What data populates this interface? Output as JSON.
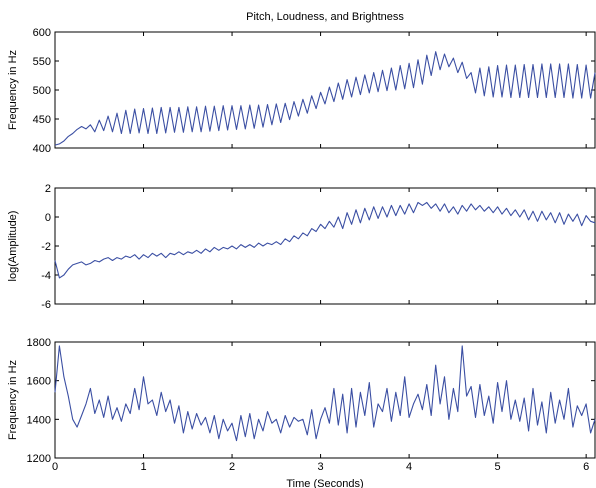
{
  "figure": {
    "title": "Pitch, Loudness, and Brightness",
    "xlabel": "Time (Seconds)"
  },
  "chart_data": [
    {
      "type": "line",
      "title": "Pitch, Loudness, and Brightness",
      "xlabel": "",
      "ylabel": "Frequency in Hz",
      "xlim": [
        0,
        6.1
      ],
      "ylim": [
        400,
        600
      ],
      "xticks": [],
      "yticks": [
        400,
        450,
        500,
        550,
        600
      ],
      "grid": false,
      "series": [
        {
          "color": "#3b4fa3",
          "x": [
            0,
            0.05,
            0.1,
            0.15,
            0.2,
            0.25,
            0.3,
            0.35,
            0.4,
            0.45,
            0.5,
            0.55,
            0.6,
            0.65,
            0.7,
            0.75,
            0.8,
            0.85,
            0.9,
            0.95,
            1.0,
            1.05,
            1.1,
            1.15,
            1.2,
            1.25,
            1.3,
            1.35,
            1.4,
            1.45,
            1.5,
            1.55,
            1.6,
            1.65,
            1.7,
            1.75,
            1.8,
            1.85,
            1.9,
            1.95,
            2.0,
            2.05,
            2.1,
            2.15,
            2.2,
            2.25,
            2.3,
            2.35,
            2.4,
            2.45,
            2.5,
            2.55,
            2.6,
            2.65,
            2.7,
            2.75,
            2.8,
            2.85,
            2.9,
            2.95,
            3.0,
            3.05,
            3.1,
            3.15,
            3.2,
            3.25,
            3.3,
            3.35,
            3.4,
            3.45,
            3.5,
            3.55,
            3.6,
            3.65,
            3.7,
            3.75,
            3.8,
            3.85,
            3.9,
            3.95,
            4.0,
            4.05,
            4.1,
            4.15,
            4.2,
            4.25,
            4.3,
            4.35,
            4.4,
            4.45,
            4.5,
            4.55,
            4.6,
            4.65,
            4.7,
            4.75,
            4.8,
            4.85,
            4.9,
            4.95,
            5.0,
            5.05,
            5.1,
            5.15,
            5.2,
            5.25,
            5.3,
            5.35,
            5.4,
            5.45,
            5.5,
            5.55,
            5.6,
            5.65,
            5.7,
            5.75,
            5.8,
            5.85,
            5.9,
            5.95,
            6.0,
            6.05,
            6.1
          ],
          "y": [
            405,
            407,
            412,
            420,
            425,
            432,
            437,
            433,
            440,
            428,
            448,
            430,
            455,
            428,
            460,
            425,
            465,
            425,
            467,
            426,
            468,
            425,
            469,
            425,
            470,
            426,
            470,
            427,
            470,
            427,
            471,
            428,
            471,
            428,
            472,
            429,
            472,
            430,
            473,
            431,
            473,
            432,
            473,
            433,
            474,
            434,
            474,
            436,
            475,
            440,
            476,
            444,
            477,
            449,
            480,
            455,
            484,
            460,
            490,
            468,
            496,
            476,
            505,
            480,
            512,
            484,
            518,
            488,
            522,
            492,
            526,
            495,
            530,
            497,
            534,
            499,
            538,
            500,
            542,
            502,
            546,
            504,
            552,
            510,
            560,
            525,
            566,
            535,
            562,
            540,
            555,
            530,
            548,
            520,
            530,
            495,
            538,
            490,
            540,
            488,
            542,
            488,
            543,
            487,
            543,
            487,
            544,
            487,
            544,
            487,
            545,
            487,
            545,
            487,
            545,
            487,
            545,
            486,
            544,
            486,
            543,
            486,
            530
          ]
        }
      ]
    },
    {
      "type": "line",
      "xlabel": "",
      "ylabel": "log(Amplitude)",
      "xlim": [
        0,
        6.1
      ],
      "ylim": [
        -6,
        2
      ],
      "xticks": [],
      "yticks": [
        -6,
        -4,
        -2,
        0,
        2
      ],
      "grid": false,
      "series": [
        {
          "color": "#3b4fa3",
          "x": [
            0,
            0.05,
            0.1,
            0.15,
            0.2,
            0.25,
            0.3,
            0.35,
            0.4,
            0.45,
            0.5,
            0.55,
            0.6,
            0.65,
            0.7,
            0.75,
            0.8,
            0.85,
            0.9,
            0.95,
            1.0,
            1.05,
            1.1,
            1.15,
            1.2,
            1.25,
            1.3,
            1.35,
            1.4,
            1.45,
            1.5,
            1.55,
            1.6,
            1.65,
            1.7,
            1.75,
            1.8,
            1.85,
            1.9,
            1.95,
            2.0,
            2.05,
            2.1,
            2.15,
            2.2,
            2.25,
            2.3,
            2.35,
            2.4,
            2.45,
            2.5,
            2.55,
            2.6,
            2.65,
            2.7,
            2.75,
            2.8,
            2.85,
            2.9,
            2.95,
            3.0,
            3.05,
            3.1,
            3.15,
            3.2,
            3.25,
            3.3,
            3.35,
            3.4,
            3.45,
            3.5,
            3.55,
            3.6,
            3.65,
            3.7,
            3.75,
            3.8,
            3.85,
            3.9,
            3.95,
            4.0,
            4.05,
            4.1,
            4.15,
            4.2,
            4.25,
            4.3,
            4.35,
            4.4,
            4.45,
            4.5,
            4.55,
            4.6,
            4.65,
            4.7,
            4.75,
            4.8,
            4.85,
            4.9,
            4.95,
            5.0,
            5.05,
            5.1,
            5.15,
            5.2,
            5.25,
            5.3,
            5.35,
            5.4,
            5.45,
            5.5,
            5.55,
            5.6,
            5.65,
            5.7,
            5.75,
            5.8,
            5.85,
            5.9,
            5.95,
            6.0,
            6.05,
            6.1
          ],
          "y": [
            -3.0,
            -4.2,
            -4.0,
            -3.6,
            -3.3,
            -3.2,
            -3.1,
            -3.3,
            -3.2,
            -3.0,
            -3.1,
            -2.9,
            -2.8,
            -3.0,
            -2.8,
            -2.9,
            -2.7,
            -2.8,
            -2.6,
            -2.9,
            -2.6,
            -2.8,
            -2.5,
            -2.7,
            -2.5,
            -2.8,
            -2.5,
            -2.6,
            -2.4,
            -2.6,
            -2.4,
            -2.5,
            -2.3,
            -2.5,
            -2.2,
            -2.4,
            -2.1,
            -2.3,
            -2.1,
            -2.2,
            -2.0,
            -2.2,
            -1.9,
            -2.1,
            -1.9,
            -2.1,
            -1.8,
            -2.0,
            -1.8,
            -1.9,
            -1.7,
            -1.9,
            -1.5,
            -1.7,
            -1.3,
            -1.5,
            -1.1,
            -1.3,
            -0.8,
            -1.0,
            -0.5,
            -0.8,
            -0.3,
            -0.7,
            0.0,
            -0.8,
            0.3,
            -0.5,
            0.5,
            -0.4,
            0.6,
            -0.2,
            0.7,
            -0.1,
            0.7,
            0.0,
            0.8,
            0.1,
            0.8,
            0.2,
            0.9,
            0.3,
            1.0,
            0.8,
            1.0,
            0.6,
            0.9,
            0.4,
            0.9,
            0.3,
            0.7,
            0.2,
            0.8,
            0.4,
            0.9,
            0.5,
            0.8,
            0.4,
            0.7,
            0.3,
            0.7,
            0.2,
            0.6,
            0.1,
            0.5,
            0.0,
            0.5,
            -0.2,
            0.4,
            -0.3,
            0.4,
            -0.2,
            0.3,
            -0.4,
            0.3,
            -0.5,
            0.2,
            -0.3,
            0.2,
            -0.6,
            0.1,
            -0.3,
            -0.4
          ]
        }
      ]
    },
    {
      "type": "line",
      "xlabel": "Time (Seconds)",
      "ylabel": "Frequency in Hz",
      "xlim": [
        0,
        6.1
      ],
      "ylim": [
        1200,
        1800
      ],
      "xticks": [
        0,
        1,
        2,
        3,
        4,
        5,
        6
      ],
      "yticks": [
        1200,
        1400,
        1600,
        1800
      ],
      "grid": false,
      "series": [
        {
          "color": "#3b4fa3",
          "x": [
            0,
            0.05,
            0.1,
            0.15,
            0.2,
            0.25,
            0.3,
            0.35,
            0.4,
            0.45,
            0.5,
            0.55,
            0.6,
            0.65,
            0.7,
            0.75,
            0.8,
            0.85,
            0.9,
            0.95,
            1.0,
            1.05,
            1.1,
            1.15,
            1.2,
            1.25,
            1.3,
            1.35,
            1.4,
            1.45,
            1.5,
            1.55,
            1.6,
            1.65,
            1.7,
            1.75,
            1.8,
            1.85,
            1.9,
            1.95,
            2.0,
            2.05,
            2.1,
            2.15,
            2.2,
            2.25,
            2.3,
            2.35,
            2.4,
            2.45,
            2.5,
            2.55,
            2.6,
            2.65,
            2.7,
            2.75,
            2.8,
            2.85,
            2.9,
            2.95,
            3.0,
            3.05,
            3.1,
            3.15,
            3.2,
            3.25,
            3.3,
            3.35,
            3.4,
            3.45,
            3.5,
            3.55,
            3.6,
            3.65,
            3.7,
            3.75,
            3.8,
            3.85,
            3.9,
            3.95,
            4.0,
            4.05,
            4.1,
            4.15,
            4.2,
            4.25,
            4.3,
            4.35,
            4.4,
            4.45,
            4.5,
            4.55,
            4.6,
            4.65,
            4.7,
            4.75,
            4.8,
            4.85,
            4.9,
            4.95,
            5.0,
            5.05,
            5.1,
            5.15,
            5.2,
            5.25,
            5.3,
            5.35,
            5.4,
            5.45,
            5.5,
            5.55,
            5.6,
            5.65,
            5.7,
            5.75,
            5.8,
            5.85,
            5.9,
            5.95,
            6.0,
            6.05,
            6.1
          ],
          "y": [
            1540,
            1780,
            1620,
            1520,
            1400,
            1360,
            1420,
            1480,
            1560,
            1430,
            1500,
            1410,
            1520,
            1400,
            1460,
            1390,
            1480,
            1430,
            1560,
            1450,
            1620,
            1480,
            1500,
            1420,
            1540,
            1440,
            1500,
            1380,
            1470,
            1330,
            1440,
            1350,
            1430,
            1370,
            1410,
            1330,
            1420,
            1300,
            1400,
            1340,
            1380,
            1290,
            1420,
            1310,
            1430,
            1300,
            1400,
            1340,
            1440,
            1380,
            1400,
            1330,
            1420,
            1360,
            1410,
            1390,
            1400,
            1320,
            1450,
            1300,
            1400,
            1460,
            1380,
            1560,
            1370,
            1530,
            1330,
            1560,
            1360,
            1540,
            1420,
            1590,
            1360,
            1480,
            1440,
            1560,
            1390,
            1540,
            1420,
            1620,
            1410,
            1480,
            1530,
            1450,
            1580,
            1420,
            1680,
            1480,
            1620,
            1400,
            1560,
            1440,
            1780,
            1520,
            1570,
            1410,
            1580,
            1420,
            1520,
            1380,
            1590,
            1440,
            1600,
            1400,
            1500,
            1390,
            1510,
            1340,
            1560,
            1370,
            1490,
            1330,
            1540,
            1380,
            1500,
            1400,
            1560,
            1360,
            1470,
            1420,
            1480,
            1330,
            1400
          ]
        }
      ]
    }
  ]
}
